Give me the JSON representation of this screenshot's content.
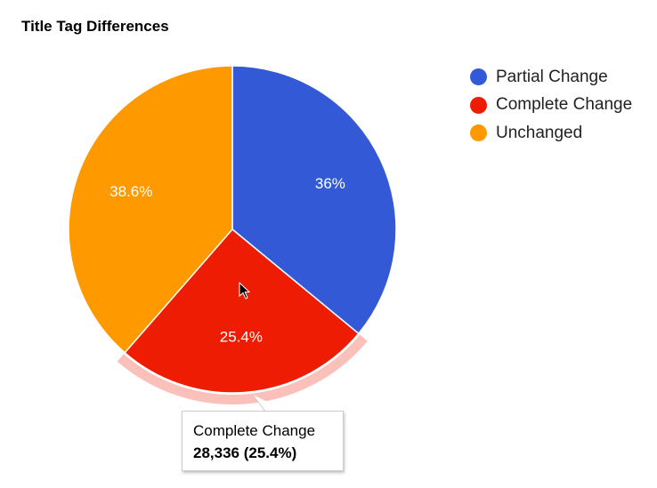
{
  "chart_data": {
    "type": "pie",
    "title": "Title Tag Differences",
    "categories": [
      "Partial Change",
      "Complete Change",
      "Unchanged"
    ],
    "values": [
      36,
      25.4,
      38.6
    ],
    "labels": [
      "36%",
      "25.4%",
      "38.6%"
    ],
    "colors": [
      "#3359d6",
      "#ee1c02",
      "#ff9900"
    ],
    "legend_position": "right",
    "highlighted": "Complete Change"
  },
  "tooltip": {
    "title": "Complete Change",
    "value": "28,336 (25.4%)"
  }
}
